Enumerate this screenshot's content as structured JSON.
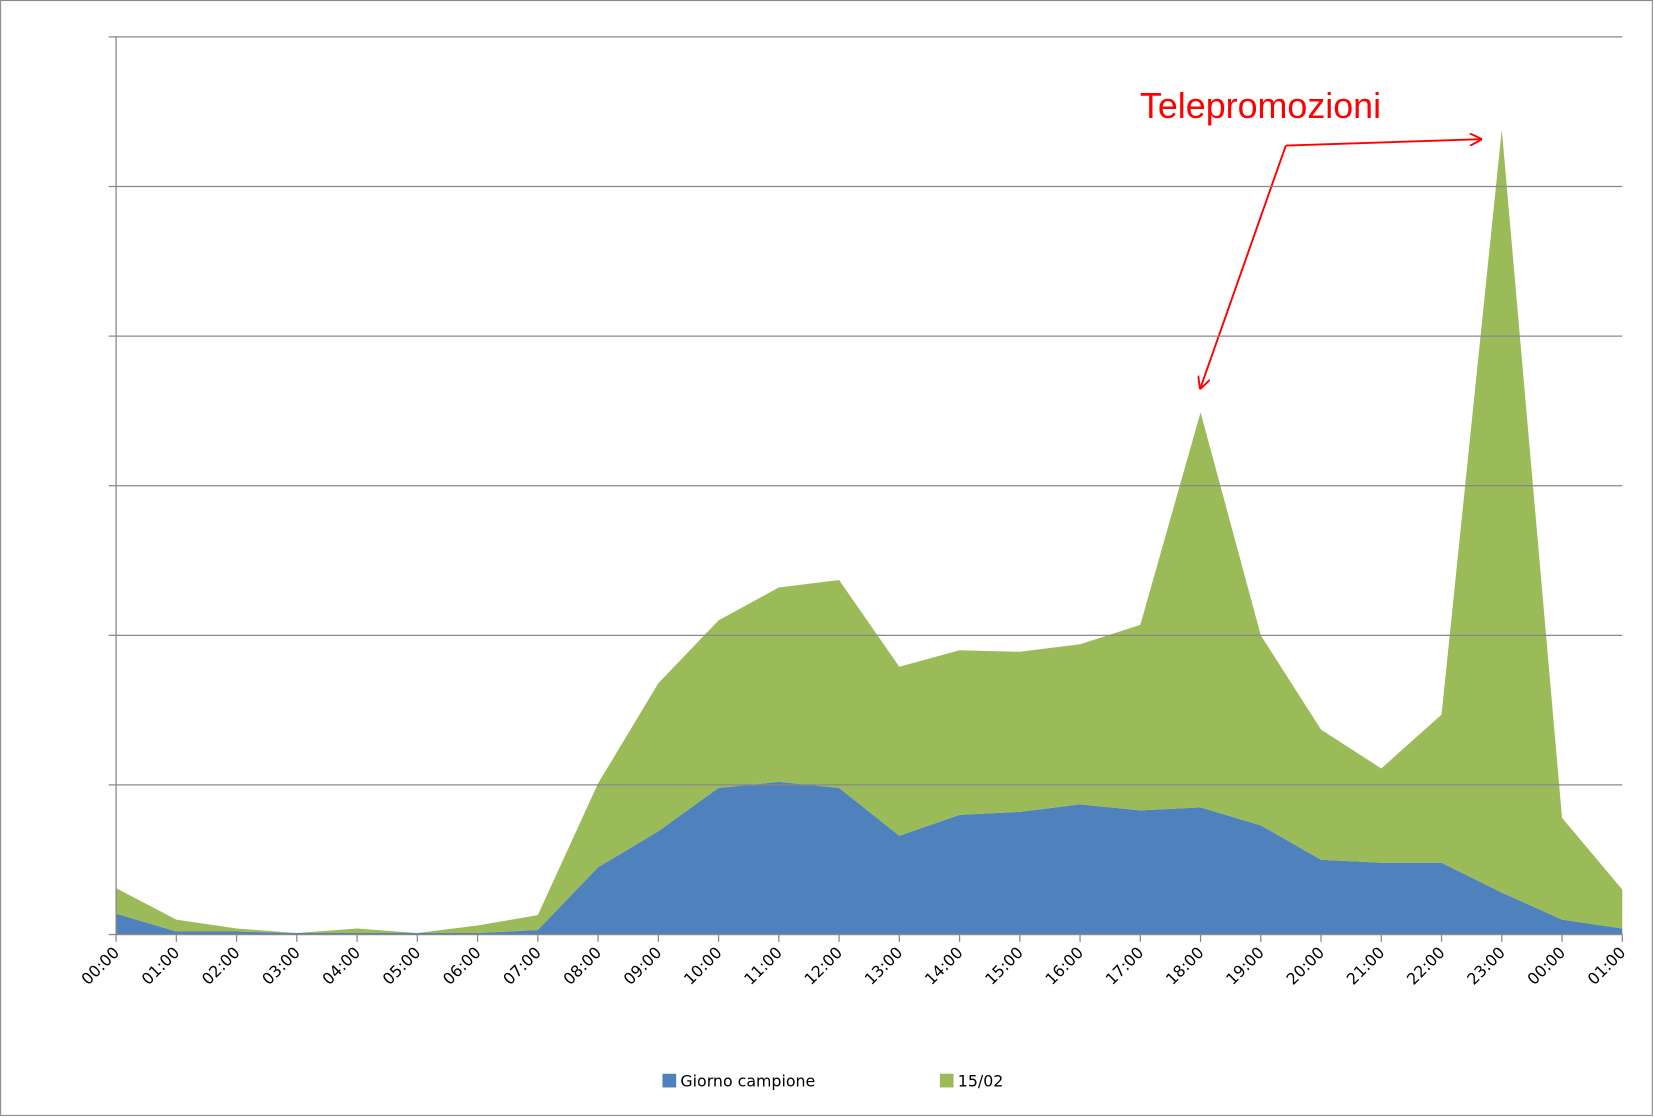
{
  "chart_data": {
    "type": "stacked_area",
    "categories": [
      "00:00",
      "01:00",
      "02:00",
      "03:00",
      "04:00",
      "05:00",
      "06:00",
      "07:00",
      "08:00",
      "09:00",
      "10:00",
      "11:00",
      "12:00",
      "13:00",
      "14:00",
      "15:00",
      "16:00",
      "17:00",
      "18:00",
      "19:00",
      "20:00",
      "21:00",
      "22:00",
      "23:00",
      "00:00",
      "01:00"
    ],
    "series": [
      {
        "name": "Giorno campione",
        "color": "#4f81bd",
        "values": [
          0.14,
          0.02,
          0.02,
          0.01,
          0.01,
          0.01,
          0.01,
          0.03,
          0.45,
          0.69,
          0.98,
          1.02,
          0.98,
          0.66,
          0.8,
          0.82,
          0.87,
          0.83,
          0.85,
          0.73,
          0.5,
          0.48,
          0.48,
          0.28,
          0.1,
          0.04
        ]
      },
      {
        "name": "15/02",
        "color": "#9bbb59",
        "values": [
          0.17,
          0.08,
          0.02,
          0.0,
          0.03,
          0.0,
          0.05,
          0.1,
          0.56,
          0.99,
          1.12,
          1.3,
          1.39,
          1.13,
          1.1,
          1.07,
          1.07,
          1.24,
          2.64,
          1.27,
          0.87,
          0.63,
          0.99,
          5.1,
          0.68,
          0.26
        ]
      }
    ],
    "ylim": [
      0,
      6
    ],
    "yticks": [
      0,
      1,
      2,
      3,
      4,
      5,
      6
    ],
    "grid": true,
    "legend": "bottom",
    "annotation": "Telepromozioni"
  }
}
